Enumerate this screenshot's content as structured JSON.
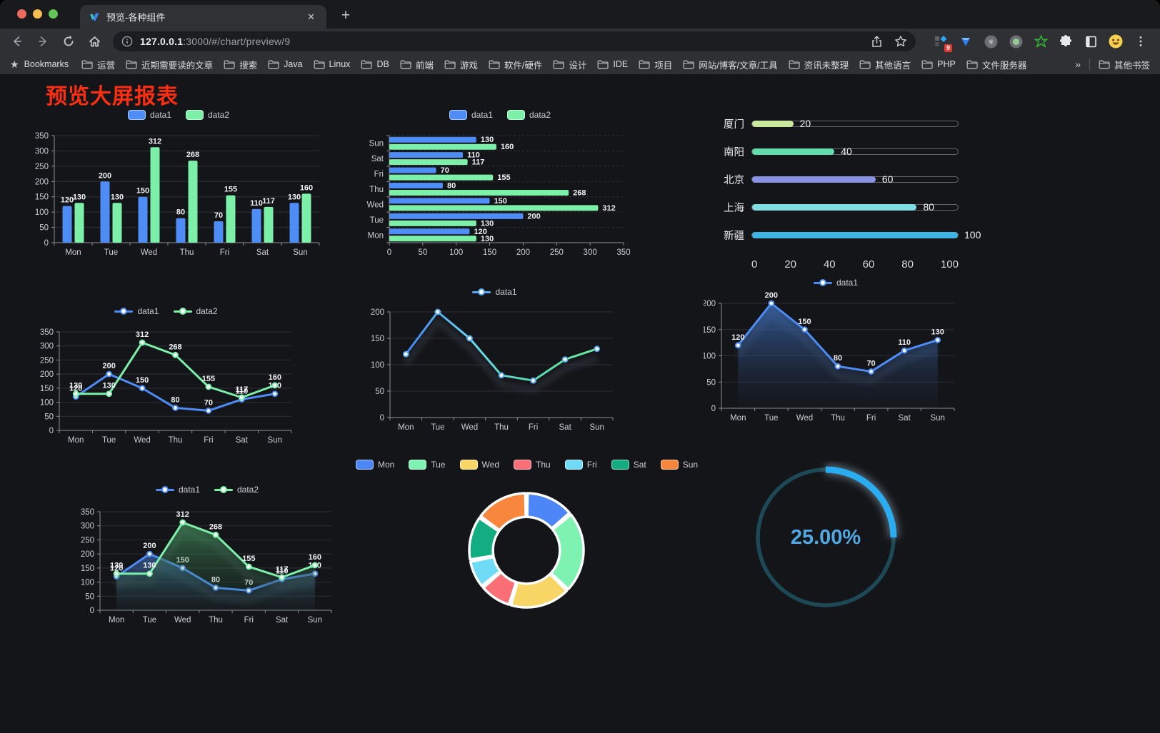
{
  "browser": {
    "tab": {
      "title": "预览-各种组件",
      "close_glyph": "✕",
      "new_tab_glyph": "+"
    },
    "url": {
      "host": "127.0.0.1",
      "rest": ":3000/#/chart/preview/9"
    },
    "extension_badge": "9",
    "bookmarks": {
      "star_glyph": "★",
      "label": "Bookmarks",
      "folders": [
        "运营",
        "近期需要读的文章",
        "搜索",
        "Java",
        "Linux",
        "DB",
        "前端",
        "游戏",
        "软件/硬件",
        "设计",
        "IDE",
        "项目",
        "网站/博客/文章/工具",
        "资讯未整理",
        "其他语言",
        "PHP",
        "文件服务器"
      ],
      "overflow_glyph": "»",
      "other_label": "其他书签"
    }
  },
  "page": {
    "title": "预览大屏报表"
  },
  "chart_data": [
    {
      "id": "bar-vertical",
      "type": "bar",
      "categories": [
        "Mon",
        "Tue",
        "Wed",
        "Thu",
        "Fri",
        "Sat",
        "Sun"
      ],
      "series": [
        {
          "name": "data1",
          "color": "#4e8df5",
          "values": [
            120,
            200,
            150,
            80,
            70,
            110,
            130
          ]
        },
        {
          "name": "data2",
          "color": "#7cefa8",
          "values": [
            130,
            130,
            312,
            268,
            155,
            117,
            160
          ]
        }
      ],
      "ylim": [
        0,
        350
      ],
      "yticks": [
        0,
        50,
        100,
        150,
        200,
        250,
        300,
        350
      ],
      "legend_position": "top",
      "grid": true,
      "value_labels": true
    },
    {
      "id": "bar-horizontal",
      "type": "bar-horizontal",
      "categories": [
        "Mon",
        "Tue",
        "Wed",
        "Thu",
        "Fri",
        "Sat",
        "Sun"
      ],
      "display_order_top_to_bottom": [
        "Sun",
        "Sat",
        "Fri",
        "Thu",
        "Wed",
        "Tue",
        "Mon"
      ],
      "series": [
        {
          "name": "data1",
          "color": "#4e8df5",
          "values": [
            120,
            200,
            150,
            80,
            70,
            110,
            130
          ]
        },
        {
          "name": "data2",
          "color": "#7cefa8",
          "values": [
            130,
            130,
            312,
            268,
            155,
            117,
            160
          ]
        }
      ],
      "xlim": [
        0,
        350
      ],
      "xticks": [
        0,
        50,
        100,
        150,
        200,
        250,
        300,
        350
      ],
      "legend_position": "top",
      "value_labels": true
    },
    {
      "id": "progress-bars",
      "type": "bar-horizontal-progress",
      "rows": [
        {
          "label": "厦门",
          "value": 20,
          "color": "#c9e89c"
        },
        {
          "label": "南阳",
          "value": 40,
          "color": "#63dcab"
        },
        {
          "label": "北京",
          "value": 60,
          "color": "#8a93e3"
        },
        {
          "label": "上海",
          "value": 80,
          "color": "#7fdde4"
        },
        {
          "label": "新疆",
          "value": 100,
          "color": "#3eb3e4"
        }
      ],
      "xlim": [
        0,
        100
      ],
      "xticks": [
        0,
        20,
        40,
        60,
        80,
        100
      ]
    },
    {
      "id": "line-two-series",
      "type": "line",
      "categories": [
        "Mon",
        "Tue",
        "Wed",
        "Thu",
        "Fri",
        "Sat",
        "Sun"
      ],
      "series": [
        {
          "name": "data1",
          "color": "#4e8df5",
          "values": [
            120,
            200,
            150,
            80,
            70,
            110,
            130
          ]
        },
        {
          "name": "data2",
          "color": "#7cefa8",
          "values": [
            130,
            130,
            312,
            268,
            155,
            117,
            160
          ]
        }
      ],
      "ylim": [
        0,
        350
      ],
      "yticks": [
        0,
        50,
        100,
        150,
        200,
        250,
        300,
        350
      ],
      "legend_position": "top",
      "value_labels": true
    },
    {
      "id": "line-gradient",
      "type": "line",
      "categories": [
        "Mon",
        "Tue",
        "Wed",
        "Thu",
        "Fri",
        "Sat",
        "Sun"
      ],
      "series": [
        {
          "name": "data1",
          "color": "#58a8f0",
          "gradient": [
            "#3f7ef0",
            "#67d8f2",
            "#58d8ac",
            "#6ce8a0"
          ],
          "values": [
            120,
            200,
            150,
            80,
            70,
            110,
            130
          ]
        }
      ],
      "ylim": [
        0,
        200
      ],
      "yticks": [
        0,
        50,
        100,
        150,
        200
      ],
      "legend_position": "top",
      "value_labels": false,
      "shadow": true
    },
    {
      "id": "area-single",
      "type": "area",
      "categories": [
        "Mon",
        "Tue",
        "Wed",
        "Thu",
        "Fri",
        "Sat",
        "Sun"
      ],
      "series": [
        {
          "name": "data1",
          "color": "#4e8df5",
          "area_from": "rgba(64,120,205,0.70)",
          "area_to": "rgba(40,60,95,0.05)",
          "values": [
            120,
            200,
            150,
            80,
            70,
            110,
            130
          ]
        }
      ],
      "ylim": [
        0,
        200
      ],
      "yticks": [
        0,
        50,
        100,
        150,
        200
      ],
      "legend_position": "top",
      "value_labels": true,
      "shadow": true
    },
    {
      "id": "area-two-series",
      "type": "area",
      "categories": [
        "Mon",
        "Tue",
        "Wed",
        "Thu",
        "Fri",
        "Sat",
        "Sun"
      ],
      "series": [
        {
          "name": "data1",
          "color": "#4e8df5",
          "area_from": "rgba(64,120,205,0.60)",
          "area_to": "rgba(40,60,95,0.05)",
          "values": [
            120,
            200,
            150,
            80,
            70,
            110,
            130
          ]
        },
        {
          "name": "data2",
          "color": "#7cefa8",
          "area_from": "rgba(80,180,110,0.55)",
          "area_to": "rgba(40,90,60,0.05)",
          "values": [
            130,
            130,
            312,
            268,
            155,
            117,
            160
          ]
        }
      ],
      "ylim": [
        0,
        350
      ],
      "yticks": [
        0,
        50,
        100,
        150,
        200,
        250,
        300,
        350
      ],
      "legend_position": "top",
      "value_labels": true,
      "shadow": true
    },
    {
      "id": "donut",
      "type": "pie",
      "inner_radius_ratio": 0.585,
      "legend_position": "top",
      "slices": [
        {
          "label": "Mon",
          "value": 120,
          "color": "#4d87f7"
        },
        {
          "label": "Tue",
          "value": 200,
          "color": "#7df2b1"
        },
        {
          "label": "Wed",
          "value": 150,
          "color": "#f7d666"
        },
        {
          "label": "Thu",
          "value": 80,
          "color": "#fa6e75"
        },
        {
          "label": "Fri",
          "value": 70,
          "color": "#6fdbf7"
        },
        {
          "label": "Sat",
          "value": 110,
          "color": "#12ae81"
        },
        {
          "label": "Sun",
          "value": 130,
          "color": "#f8863c"
        }
      ]
    },
    {
      "id": "gauge",
      "type": "gauge",
      "value": 25,
      "max": 100,
      "display": "25.00%",
      "track_color": "#1d4956",
      "progress_color": "#2aacf1",
      "text_color": "#4fa8e2"
    }
  ]
}
